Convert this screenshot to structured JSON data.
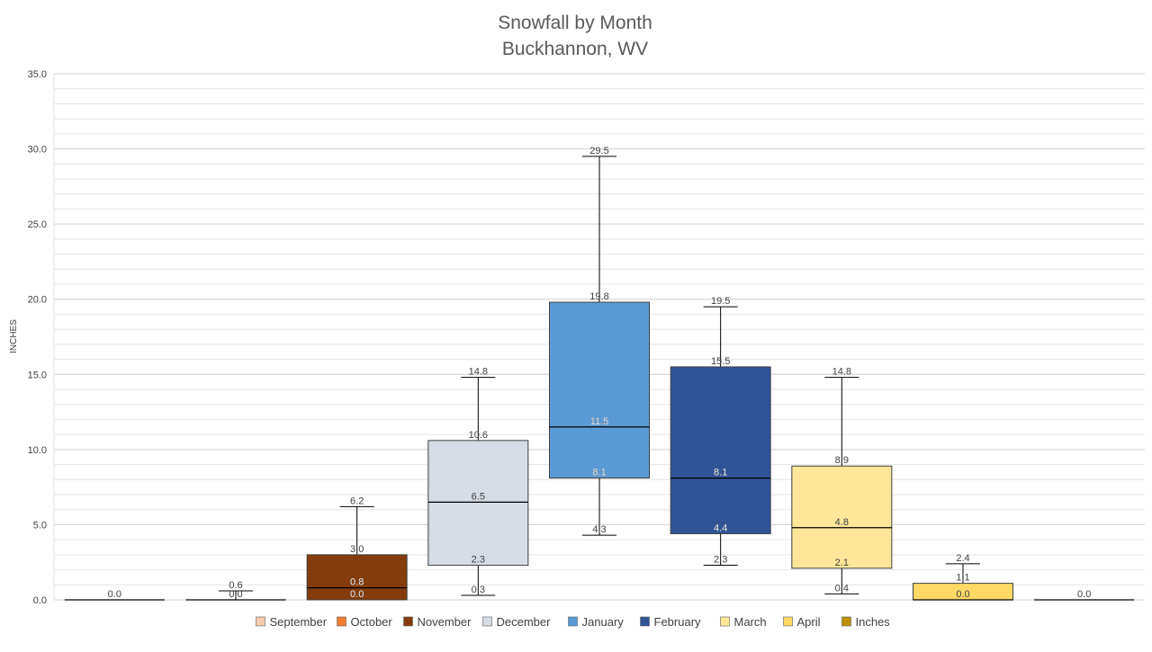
{
  "chart_data": {
    "type": "boxplot",
    "title": "Snowfall by Month",
    "subtitle": "Buckhannon, WV",
    "ylabel": "INCHES",
    "ylim": [
      0,
      35
    ],
    "y_ticks": [
      "0.0",
      "5.0",
      "10.0",
      "15.0",
      "20.0",
      "25.0",
      "30.0",
      "35.0"
    ],
    "grid": true,
    "legend_position": "bottom",
    "legend": [
      "September",
      "October",
      "November",
      "December",
      "January",
      "February",
      "March",
      "April",
      "Inches"
    ],
    "series": [
      {
        "name": "September",
        "color": "#F8CBAD",
        "min": 0.0,
        "q1": 0.0,
        "median": 0.0,
        "q3": 0.0,
        "max": 0.0,
        "labels": [
          "0.0"
        ]
      },
      {
        "name": "October",
        "color": "#ED7D31",
        "min": 0.0,
        "q1": 0.0,
        "median": 0.0,
        "q3": 0.0,
        "max": 0.6,
        "labels": [
          "0.6",
          "0.0"
        ]
      },
      {
        "name": "November",
        "color": "#843C0C",
        "min": 0.0,
        "q1": 0.0,
        "median": 0.8,
        "q3": 3.0,
        "max": 6.2,
        "labels": [
          "6.2",
          "3.0",
          "0.8",
          "0.0"
        ]
      },
      {
        "name": "December",
        "color": "#D6DCE5",
        "min": 0.3,
        "q1": 2.3,
        "median": 6.5,
        "q3": 10.6,
        "max": 14.8,
        "labels": [
          "14.8",
          "10.6",
          "6.5",
          "2.3",
          "0.3"
        ]
      },
      {
        "name": "January",
        "color": "#5B9BD5",
        "min": 4.3,
        "q1": 8.1,
        "median": 11.5,
        "q3": 19.8,
        "max": 29.5,
        "labels": [
          "29.5",
          "19.8",
          "11.5",
          "8.1",
          "4.3"
        ]
      },
      {
        "name": "February",
        "color": "#2F5597",
        "min": 2.3,
        "q1": 4.4,
        "median": 8.1,
        "q3": 15.5,
        "max": 19.5,
        "labels": [
          "19.5",
          "15.5",
          "8.1",
          "4.4",
          "2.3"
        ]
      },
      {
        "name": "March",
        "color": "#FFE699",
        "min": 0.4,
        "q1": 2.1,
        "median": 4.8,
        "q3": 8.9,
        "max": 14.8,
        "labels": [
          "14.8",
          "8.9",
          "4.8",
          "2.1",
          "0.4"
        ]
      },
      {
        "name": "April",
        "color": "#FFD966",
        "min": 0.0,
        "q1": 0.0,
        "median": 0.0,
        "q3": 1.1,
        "max": 2.4,
        "labels": [
          "2.4",
          "1.1",
          "0.0"
        ]
      },
      {
        "name": "Inches",
        "color": "#BF9000",
        "min": 0.0,
        "q1": 0.0,
        "median": 0.0,
        "q3": 0.0,
        "max": 0.0,
        "labels": [
          "0.0"
        ]
      }
    ]
  }
}
